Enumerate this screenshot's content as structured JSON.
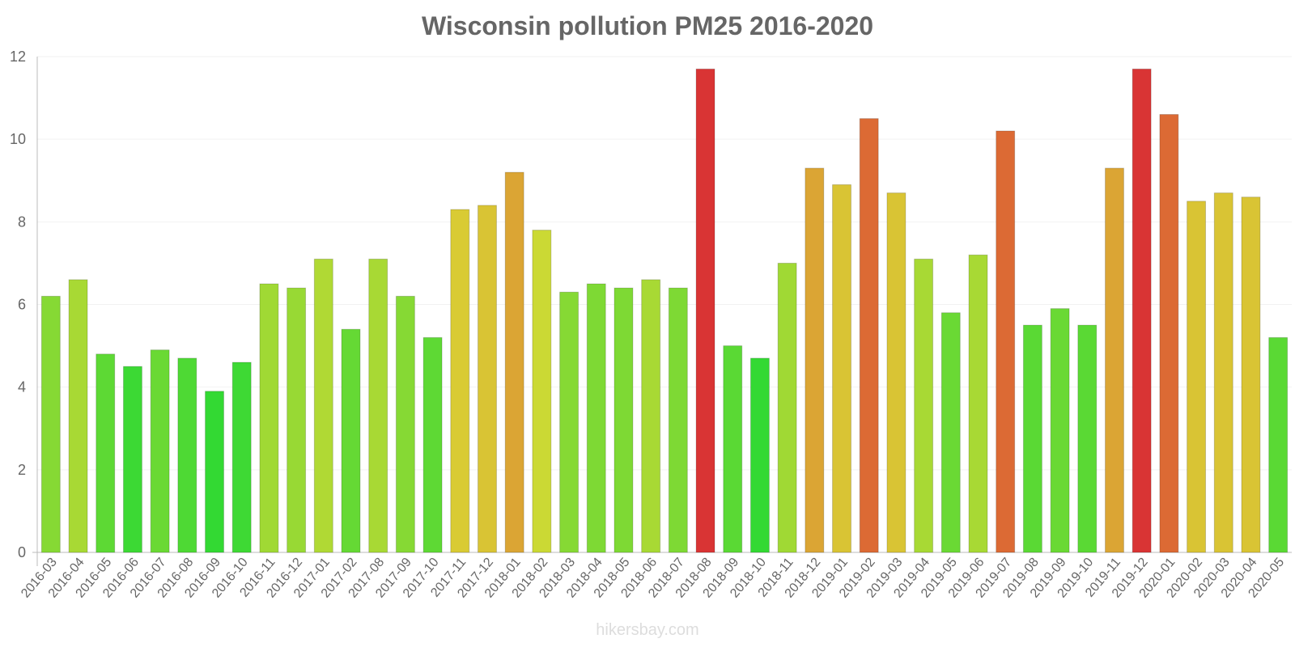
{
  "chart_data": {
    "type": "bar",
    "title": "Wisconsin pollution PM25 2016-2020",
    "xlabel": "",
    "ylabel": "",
    "ylim": [
      0,
      12
    ],
    "yticks": [
      "0",
      "2",
      "4",
      "6",
      "8",
      "10",
      "12"
    ],
    "grid": true,
    "legend": "none",
    "categories": [
      "2016-03",
      "2016-04",
      "2016-05",
      "2016-06",
      "2016-07",
      "2016-08",
      "2016-09",
      "2016-10",
      "2016-11",
      "2016-12",
      "2017-01",
      "2017-02",
      "2017-08",
      "2017-09",
      "2017-10",
      "2017-11",
      "2017-12",
      "2018-01",
      "2018-02",
      "2018-03",
      "2018-04",
      "2018-05",
      "2018-06",
      "2018-07",
      "2018-08",
      "2018-09",
      "2018-10",
      "2018-11",
      "2018-12",
      "2019-01",
      "2019-02",
      "2019-03",
      "2019-04",
      "2019-05",
      "2019-06",
      "2019-07",
      "2019-08",
      "2019-09",
      "2019-10",
      "2019-11",
      "2019-12",
      "2020-01",
      "2020-02",
      "2020-03",
      "2020-04",
      "2020-05"
    ],
    "values": [
      6.2,
      6.6,
      4.8,
      4.5,
      4.9,
      4.7,
      3.9,
      4.6,
      6.5,
      6.4,
      7.1,
      5.4,
      7.1,
      6.2,
      5.2,
      8.3,
      8.4,
      9.2,
      7.8,
      6.3,
      6.5,
      6.4,
      6.6,
      6.4,
      11.7,
      5.0,
      4.7,
      7.0,
      9.3,
      8.9,
      10.5,
      8.7,
      7.1,
      5.8,
      7.2,
      10.2,
      5.5,
      5.9,
      5.5,
      9.3,
      11.7,
      10.6,
      8.5,
      8.7,
      8.6,
      5.2
    ],
    "colors": [
      "#86d934",
      "#a8d934",
      "#5dd934",
      "#3cd934",
      "#6ad934",
      "#4ed934",
      "#33d933",
      "#3ed934",
      "#a0d934",
      "#98d934",
      "#b0d934",
      "#65d934",
      "#a8d934",
      "#86d934",
      "#5ed934",
      "#d9cb34",
      "#d9c434",
      "#dba534",
      "#cbd934",
      "#86d934",
      "#7ed934",
      "#7ed934",
      "#a8d934",
      "#7ed934",
      "#d93434",
      "#5ad934",
      "#33d933",
      "#a0d934",
      "#dba534",
      "#d9c434",
      "#dc6a34",
      "#d9c434",
      "#a8d934",
      "#6ad934",
      "#a8d934",
      "#dc6a34",
      "#5ad934",
      "#6ad934",
      "#5ad934",
      "#dba534",
      "#d93434",
      "#dc6a34",
      "#d9c434",
      "#d9c434",
      "#d9c434",
      "#5ad934"
    ]
  },
  "watermark": "hikersbay.com"
}
